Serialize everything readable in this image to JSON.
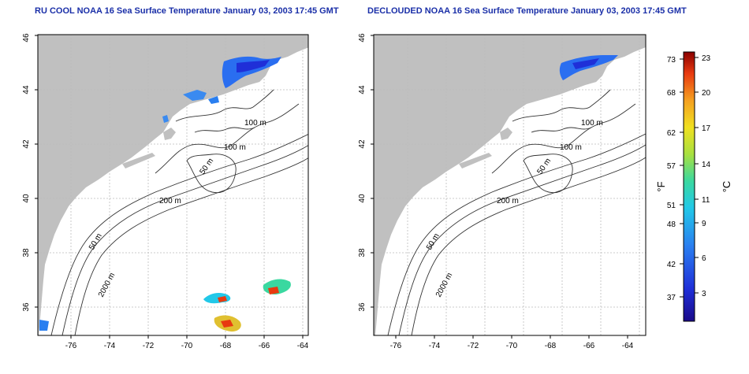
{
  "maps": [
    {
      "title": "RU COOL NOAA 16 Sea Surface Temperature January 03, 2003 17:45 GMT",
      "x_ticks": [
        "-76",
        "-74",
        "-72",
        "-70",
        "-68",
        "-66",
        "-64"
      ],
      "y_ticks": [
        "36",
        "38",
        "40",
        "42",
        "44",
        "46"
      ],
      "contour_labels": [
        "100 m",
        "100 m",
        "50 m",
        "200 m",
        "50 m",
        "2000 m"
      ]
    },
    {
      "title": "DECLOUDED NOAA 16 Sea Surface Temperature January 03, 2003 17:45 GMT",
      "x_ticks": [
        "-76",
        "-74",
        "-72",
        "-70",
        "-68",
        "-66",
        "-64"
      ],
      "y_ticks": [
        "36",
        "38",
        "40",
        "42",
        "44",
        "46"
      ],
      "contour_labels": [
        "100 m",
        "100 m",
        "50 m",
        "200 m",
        "50 m",
        "2000 m"
      ]
    }
  ],
  "colorbar": {
    "fahrenheit_label": "°F",
    "celsius_label": "°C",
    "fahrenheit_ticks": [
      "73",
      "68",
      "62",
      "57",
      "51",
      "48",
      "42",
      "37"
    ],
    "celsius_ticks": [
      "23",
      "20",
      "17",
      "14",
      "11",
      "9",
      "6",
      "3"
    ]
  },
  "colors": {
    "land": "#c0c0c0",
    "ocean": "#ffffff",
    "title": "#1a2fa8",
    "contour": "#333333",
    "grid": "#bbbbbb"
  }
}
